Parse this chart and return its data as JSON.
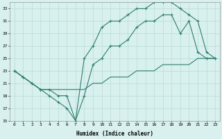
{
  "xlabel": "Humidex (Indice chaleur)",
  "bg_color": "#d8f0ee",
  "grid_color": "#b8dcd8",
  "line_color": "#2e7d6e",
  "xlim": [
    -0.5,
    23.5
  ],
  "ylim": [
    15,
    34
  ],
  "xticks": [
    0,
    1,
    2,
    3,
    4,
    5,
    6,
    7,
    8,
    9,
    10,
    11,
    12,
    13,
    14,
    15,
    16,
    17,
    18,
    19,
    20,
    21,
    22,
    23
  ],
  "yticks": [
    15,
    17,
    19,
    21,
    23,
    25,
    27,
    29,
    31,
    33
  ],
  "line1_x": [
    0,
    1,
    2,
    3,
    4,
    5,
    6,
    7,
    8,
    9,
    10,
    11,
    12,
    13,
    14,
    15,
    16,
    17,
    18,
    19,
    20,
    21,
    22,
    23
  ],
  "line1_y": [
    23,
    22,
    21,
    20,
    19,
    18,
    17,
    15,
    19,
    24,
    25,
    27,
    27,
    28,
    30,
    31,
    31,
    32,
    32,
    29,
    31,
    26,
    25,
    25
  ],
  "line2_x": [
    0,
    1,
    2,
    3,
    4,
    5,
    6,
    7,
    8,
    9,
    10,
    11,
    12,
    13,
    14,
    15,
    16,
    17,
    18,
    19,
    20,
    21,
    22,
    23
  ],
  "line2_y": [
    23,
    22,
    21,
    20,
    20,
    19,
    19,
    15,
    25,
    27,
    30,
    31,
    31,
    32,
    33,
    33,
    34,
    34,
    34,
    33,
    32,
    31,
    26,
    25
  ],
  "line3_x": [
    0,
    1,
    2,
    3,
    4,
    5,
    6,
    7,
    8,
    9,
    10,
    11,
    12,
    13,
    14,
    15,
    16,
    17,
    18,
    19,
    20,
    21,
    22,
    23
  ],
  "line3_y": [
    23,
    22,
    21,
    20,
    20,
    20,
    20,
    20,
    20,
    21,
    21,
    22,
    22,
    22,
    23,
    23,
    23,
    24,
    24,
    24,
    24,
    25,
    25,
    25
  ]
}
